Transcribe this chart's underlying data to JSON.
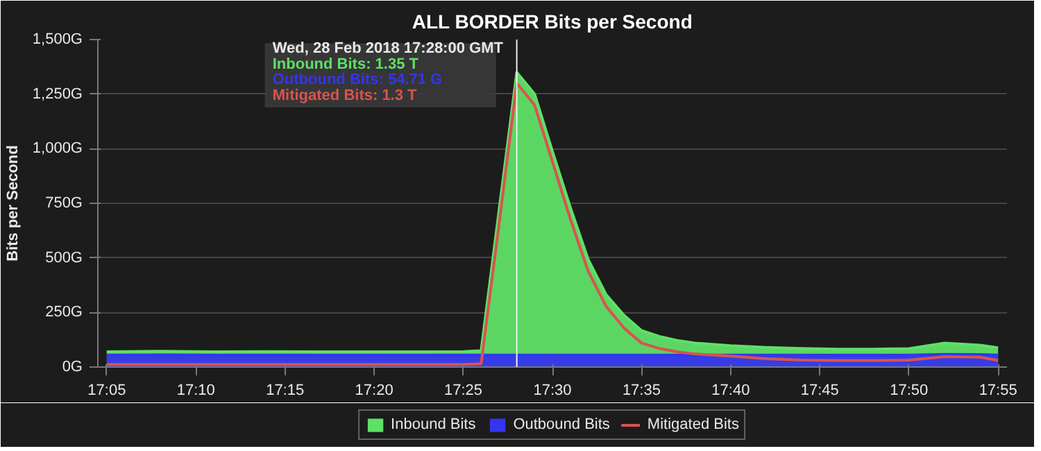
{
  "chart_data": {
    "type": "area",
    "title": "ALL BORDER Bits per Second",
    "ylabel": "Bits per Second",
    "x": [
      "2018-02-28T17:05",
      "2018-02-28T17:08",
      "2018-02-28T17:11",
      "2018-02-28T17:14",
      "2018-02-28T17:17",
      "2018-02-28T17:20",
      "2018-02-28T17:23",
      "2018-02-28T17:25",
      "2018-02-28T17:26",
      "2018-02-28T17:27",
      "2018-02-28T17:28",
      "2018-02-28T17:29",
      "2018-02-28T17:30",
      "2018-02-28T17:31",
      "2018-02-28T17:32",
      "2018-02-28T17:33",
      "2018-02-28T17:34",
      "2018-02-28T17:35",
      "2018-02-28T17:36",
      "2018-02-28T17:37",
      "2018-02-28T17:38",
      "2018-02-28T17:40",
      "2018-02-28T17:42",
      "2018-02-28T17:44",
      "2018-02-28T17:46",
      "2018-02-28T17:48",
      "2018-02-28T17:50",
      "2018-02-28T17:52",
      "2018-02-28T17:54",
      "2018-02-28T17:55"
    ],
    "series": [
      {
        "name": "Inbound Bits",
        "color": "#5fe067",
        "values": [
          70,
          72,
          70,
          71,
          70,
          70,
          70,
          71,
          75,
          714,
          1350,
          1250,
          988,
          732,
          494,
          333,
          238,
          167,
          140,
          122,
          110,
          98,
          90,
          85,
          82,
          82,
          84,
          110,
          100,
          88
        ]
      },
      {
        "name": "Outbound Bits",
        "color": "#3535ee",
        "values": [
          55,
          56,
          55,
          55,
          55,
          55,
          55,
          55,
          55,
          55,
          55,
          55,
          55,
          55,
          55,
          55,
          55,
          55,
          55,
          55,
          55,
          55,
          55,
          55,
          55,
          55,
          55,
          58,
          57,
          55
        ]
      },
      {
        "name": "Mitigated Bits",
        "type": "line",
        "color": "#d9534f",
        "values": [
          12,
          12,
          12,
          12,
          12,
          12,
          12,
          12,
          15,
          650,
          1300,
          1200,
          940,
          680,
          440,
          280,
          180,
          110,
          85,
          70,
          60,
          50,
          38,
          32,
          30,
          30,
          32,
          48,
          45,
          30
        ]
      }
    ],
    "xlim": [
      "2018-02-28T17:04:30",
      "2018-02-28T17:55:30"
    ],
    "xticks": [
      {
        "value": "2018-02-28T17:05",
        "label": "17:05"
      },
      {
        "value": "2018-02-28T17:10",
        "label": "17:10"
      },
      {
        "value": "2018-02-28T17:15",
        "label": "17:15"
      },
      {
        "value": "2018-02-28T17:20",
        "label": "17:20"
      },
      {
        "value": "2018-02-28T17:25",
        "label": "17:25"
      },
      {
        "value": "2018-02-28T17:30",
        "label": "17:30"
      },
      {
        "value": "2018-02-28T17:35",
        "label": "17:35"
      },
      {
        "value": "2018-02-28T17:40",
        "label": "17:40"
      },
      {
        "value": "2018-02-28T17:45",
        "label": "17:45"
      },
      {
        "value": "2018-02-28T17:50",
        "label": "17:50"
      },
      {
        "value": "2018-02-28T17:55",
        "label": "17:55"
      }
    ],
    "ylim": [
      0,
      1500
    ],
    "yticks": [
      {
        "value": 0,
        "label": "0G"
      },
      {
        "value": 250,
        "label": "250G"
      },
      {
        "value": 500,
        "label": "500G"
      },
      {
        "value": 750,
        "label": "750G"
      },
      {
        "value": 1000,
        "label": "1,000G"
      },
      {
        "value": 1250,
        "label": "1,250G"
      },
      {
        "value": 1500,
        "label": "1,500G"
      }
    ],
    "ref_lines": [
      {
        "axis": "x",
        "value": "2018-02-28T17:28",
        "color": "#eeeeee"
      }
    ],
    "annotations": [
      "Wed, 28 Feb 2018 17:28:00 GMT",
      "Inbound Bits: 1.35 T",
      "Outbound Bits: 54.71 G",
      "Mitigated Bits: 1.3 T"
    ],
    "grid": "y",
    "legend": "bottom"
  }
}
